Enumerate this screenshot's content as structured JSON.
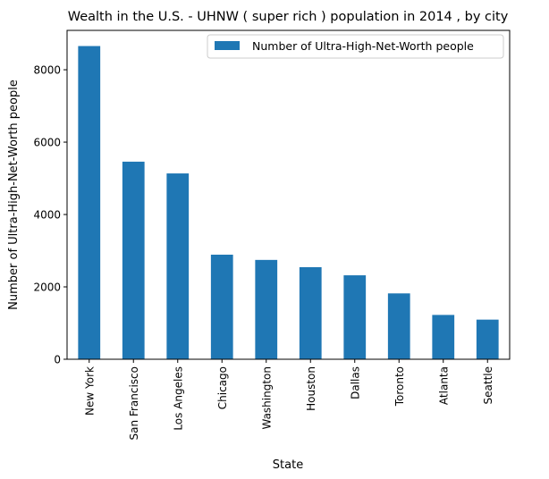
{
  "chart_data": {
    "type": "bar",
    "title": "Wealth in the U.S. - UHNW ( super rich ) population in 2014 , by city",
    "xlabel": "State",
    "ylabel": "Number of Ultra-High-Net-Worth people",
    "categories": [
      "New York",
      "San Francisco",
      "Los Angeles",
      "Chicago",
      "Washington",
      "Houston",
      "Dallas",
      "Toronto",
      "Atlanta",
      "Seattle"
    ],
    "series": [
      {
        "name": "Number of Ultra-High-Net-Worth people",
        "values": [
          8655,
          5460,
          5135,
          2890,
          2745,
          2545,
          2320,
          1820,
          1225,
          1095
        ],
        "color": "#1f77b4"
      }
    ],
    "yticks": [
      0,
      2000,
      4000,
      6000,
      8000
    ],
    "ylim": [
      0,
      9088
    ],
    "grid": false,
    "legend_position": "top-right"
  }
}
